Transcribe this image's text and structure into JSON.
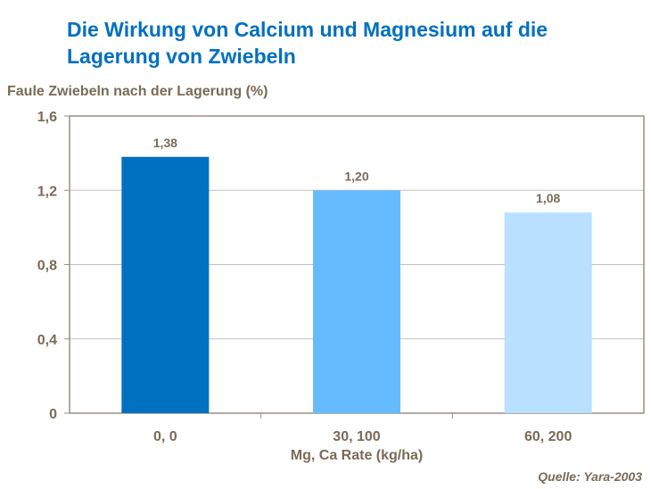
{
  "chart_data": {
    "type": "bar",
    "title": "Die Wirkung von Calcium und Magnesium auf die Lagerung von Zwiebeln",
    "ylabel": "Faule Zwiebeln nach der Lagerung (%)",
    "xlabel": "Mg, Ca Rate (kg/ha)",
    "categories": [
      "0, 0",
      "30, 100",
      "60, 200"
    ],
    "values": [
      1.38,
      1.2,
      1.08
    ],
    "data_labels": [
      "1,38",
      "1,20",
      "1,08"
    ],
    "colors": [
      "#0070c0",
      "#66bbff",
      "#b9e0ff"
    ],
    "ylim": [
      0,
      1.6
    ],
    "yticks": [
      0,
      0.4,
      0.8,
      1.2,
      1.6
    ],
    "ytick_labels": [
      "0",
      "0,4",
      "0,8",
      "1,2",
      "1,6"
    ],
    "grid": true,
    "source": "Quelle: Yara-2003"
  }
}
